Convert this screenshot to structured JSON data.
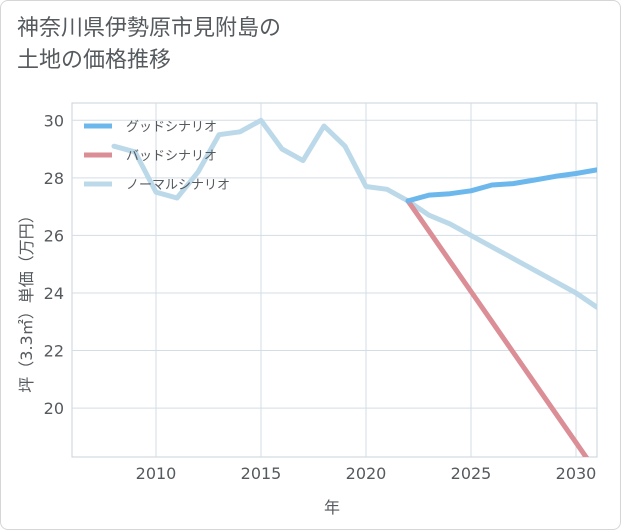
{
  "title_lines": [
    "神奈川県伊勢原市見附島の",
    "土地の価格推移"
  ],
  "chart_data": {
    "type": "line",
    "xlabel": "年",
    "ylabel": "坪（3.3㎡）単価（万円）",
    "xlim": [
      2006,
      2031
    ],
    "ylim": [
      18.3,
      30.6
    ],
    "xticks": [
      2010,
      2015,
      2020,
      2025,
      2030
    ],
    "yticks": [
      20,
      22,
      24,
      26,
      28,
      30
    ],
    "grid": true,
    "legend_position": "top-left",
    "series": [
      {
        "name": "グッドシナリオ",
        "color": "#6cb8ec",
        "x": [
          2022,
          2023,
          2024,
          2025,
          2026,
          2027,
          2028,
          2029,
          2030,
          2031
        ],
        "y": [
          27.2,
          27.4,
          27.45,
          27.55,
          27.75,
          27.8,
          27.92,
          28.05,
          28.15,
          28.28
        ]
      },
      {
        "name": "バッドシナリオ",
        "color": "#db8e96",
        "x": [
          2022,
          2023,
          2024,
          2025,
          2026,
          2027,
          2028,
          2029,
          2030,
          2031
        ],
        "y": [
          27.2,
          26.15,
          25.1,
          24.05,
          23.0,
          21.95,
          20.9,
          19.85,
          18.8,
          17.75
        ]
      },
      {
        "name": "ノーマルシナリオ",
        "color": "#bcd9ea",
        "x": [
          2008,
          2009,
          2010,
          2011,
          2012,
          2013,
          2014,
          2015,
          2016,
          2017,
          2018,
          2019,
          2020,
          2021,
          2022,
          2023,
          2024,
          2025,
          2026,
          2027,
          2028,
          2029,
          2030,
          2031
        ],
        "y": [
          29.1,
          28.9,
          27.5,
          27.3,
          28.2,
          29.5,
          29.6,
          30.0,
          29.0,
          28.6,
          29.8,
          29.1,
          27.7,
          27.6,
          27.2,
          26.7,
          26.4,
          26.0,
          25.6,
          25.2,
          24.8,
          24.4,
          24.0,
          23.5
        ]
      }
    ]
  }
}
